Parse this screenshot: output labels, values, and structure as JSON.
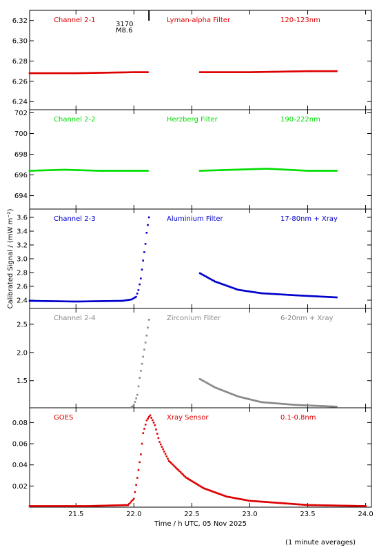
{
  "chart_data": {
    "type": "scatter",
    "x_range": [
      21.1,
      24.05
    ],
    "x_ticks": [
      21.5,
      22.0,
      22.5,
      23.0,
      23.5,
      24.0
    ],
    "x_tick_labels": [
      "21.5",
      "22.0",
      "22.5",
      "23.0",
      "23.5",
      "24.0"
    ],
    "xlabel": "Time / h UTC, 05 Nov 2025",
    "ylabel": "Calibrated Signal / (mW m⁻²)",
    "grid": false,
    "footnote": "(1 minute averages)",
    "flare_marker": {
      "x": 22.13,
      "labels": [
        "3170",
        "M8.6"
      ]
    },
    "panels": [
      {
        "channel": "Channel 2-1",
        "filter": "Lyman-alpha Filter",
        "band": "120-123nm",
        "color": "#dd0000",
        "ylim": [
          6.232,
          6.33
        ],
        "yticks": [
          6.24,
          6.26,
          6.28,
          6.3,
          6.32
        ],
        "ytick_labels": [
          "6.24",
          "6.26",
          "6.28",
          "6.30",
          "6.32"
        ],
        "segments": [
          {
            "points": [
              [
                21.1,
                6.268
              ],
              [
                21.5,
                6.268
              ],
              [
                22.0,
                6.269
              ],
              [
                22.12,
                6.269
              ]
            ]
          },
          {
            "points": [
              [
                22.57,
                6.269
              ],
              [
                23.0,
                6.269
              ],
              [
                23.5,
                6.27
              ],
              [
                23.75,
                6.27
              ]
            ]
          }
        ]
      },
      {
        "channel": "Channel 2-2",
        "filter": "Herzberg Filter",
        "band": "190-222nm",
        "color": "#00dd00",
        "ylim": [
          692.7,
          702.3
        ],
        "yticks": [
          694,
          696,
          698,
          700,
          702
        ],
        "ytick_labels": [
          "694",
          "696",
          "698",
          "700",
          "702"
        ],
        "segments": [
          {
            "points": [
              [
                21.1,
                696.4
              ],
              [
                21.4,
                696.5
              ],
              [
                21.7,
                696.4
              ],
              [
                22.12,
                696.4
              ]
            ]
          },
          {
            "points": [
              [
                22.57,
                696.4
              ],
              [
                23.15,
                696.6
              ],
              [
                23.5,
                696.4
              ],
              [
                23.75,
                696.4
              ]
            ]
          }
        ]
      },
      {
        "channel": "Channel 2-3",
        "filter": "Aluminium Filter",
        "band": "17-80nm + Xray",
        "color": "#0000cc",
        "ylim": [
          2.28,
          3.72
        ],
        "yticks": [
          2.4,
          2.6,
          2.8,
          3.0,
          3.2,
          3.4,
          3.6
        ],
        "ytick_labels": [
          "2.4",
          "2.6",
          "2.8",
          "3.0",
          "3.2",
          "3.4",
          "3.6"
        ],
        "segments": [
          {
            "points": [
              [
                21.1,
                2.39
              ],
              [
                21.5,
                2.38
              ],
              [
                21.9,
                2.39
              ],
              [
                21.98,
                2.41
              ],
              [
                22.02,
                2.45
              ],
              [
                22.04,
                2.55
              ],
              [
                22.06,
                2.72
              ],
              [
                22.08,
                2.98
              ],
              [
                22.1,
                3.22
              ],
              [
                22.11,
                3.38
              ],
              [
                22.13,
                3.6
              ]
            ]
          },
          {
            "points": [
              [
                22.57,
                2.79
              ],
              [
                22.7,
                2.67
              ],
              [
                22.9,
                2.55
              ],
              [
                23.1,
                2.5
              ],
              [
                23.4,
                2.47
              ],
              [
                23.75,
                2.44
              ]
            ]
          }
        ]
      },
      {
        "channel": "Channel 2-4",
        "filter": "Zirconium Filter",
        "band": "6-20nm + Xray",
        "color": "#888888",
        "ylim": [
          1.02,
          2.78
        ],
        "yticks": [
          1.5,
          2.0,
          2.5
        ],
        "ytick_labels": [
          "1.5",
          "2.0",
          "2.5"
        ],
        "segments": [
          {
            "points": [
              [
                21.97,
                1.02
              ],
              [
                22.0,
                1.06
              ],
              [
                22.03,
                1.25
              ],
              [
                22.05,
                1.55
              ],
              [
                22.07,
                1.8
              ],
              [
                22.09,
                2.05
              ],
              [
                22.11,
                2.3
              ],
              [
                22.13,
                2.58
              ]
            ]
          },
          {
            "points": [
              [
                22.57,
                1.53
              ],
              [
                22.7,
                1.38
              ],
              [
                22.9,
                1.22
              ],
              [
                23.1,
                1.12
              ],
              [
                23.4,
                1.07
              ],
              [
                23.75,
                1.04
              ]
            ]
          }
        ]
      },
      {
        "channel": "GOES",
        "filter": "Xray Sensor",
        "band": "0.1-0.8nm",
        "color": "#dd0000",
        "ylim": [
          0.0,
          0.094
        ],
        "yticks": [
          0.02,
          0.04,
          0.06,
          0.08
        ],
        "ytick_labels": [
          "0.02",
          "0.04",
          "0.06",
          "0.08"
        ],
        "segments": [
          {
            "points": [
              [
                21.1,
                0.001
              ],
              [
                21.6,
                0.001
              ],
              [
                21.95,
                0.002
              ],
              [
                22.0,
                0.008
              ],
              [
                22.03,
                0.028
              ],
              [
                22.06,
                0.05
              ],
              [
                22.08,
                0.07
              ],
              [
                22.11,
                0.082
              ],
              [
                22.14,
                0.087
              ],
              [
                22.18,
                0.078
              ],
              [
                22.22,
                0.062
              ],
              [
                22.3,
                0.044
              ],
              [
                22.45,
                0.028
              ],
              [
                22.6,
                0.018
              ],
              [
                22.8,
                0.01
              ],
              [
                23.0,
                0.006
              ],
              [
                23.5,
                0.002
              ],
              [
                24.0,
                0.001
              ]
            ]
          }
        ]
      }
    ]
  }
}
